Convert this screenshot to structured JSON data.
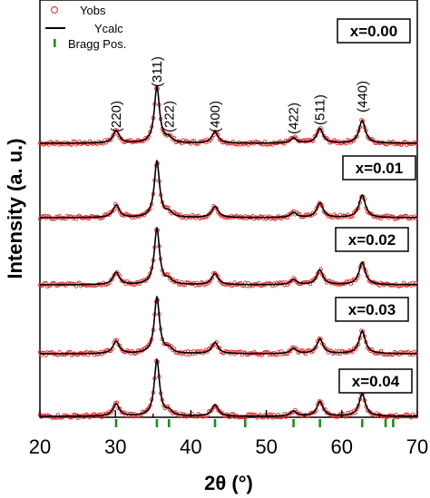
{
  "chart_data": {
    "type": "line",
    "xlabel": "2θ (°)",
    "ylabel": "Intensity (a. u.)",
    "xlim": [
      20,
      70
    ],
    "x_ticks": [
      "20",
      "30",
      "40",
      "50",
      "60",
      "70"
    ],
    "legend": {
      "placement": "top-left",
      "entries": [
        {
          "label": "Yobs",
          "marker": "open-circle",
          "color": "#e03030"
        },
        {
          "label": "Ycalc",
          "marker": "line",
          "color": "#000000"
        },
        {
          "label": "Bragg Pos.",
          "marker": "vertical-bar",
          "color": "#1e8c1e"
        }
      ]
    },
    "peak_labels": [
      {
        "x": 30.1,
        "label": "(220)"
      },
      {
        "x": 35.5,
        "label": "(311)"
      },
      {
        "x": 37.1,
        "label": "(222)"
      },
      {
        "x": 43.2,
        "label": "(400)"
      },
      {
        "x": 53.6,
        "label": "(422)"
      },
      {
        "x": 57.1,
        "label": "(511)"
      },
      {
        "x": 62.7,
        "label": "(440)"
      }
    ],
    "bragg_positions": [
      30.1,
      35.5,
      37.1,
      43.2,
      47.2,
      53.6,
      57.1,
      62.7,
      65.8,
      66.8
    ],
    "peaks": [
      {
        "x": 30.1,
        "height": 0.22
      },
      {
        "x": 35.5,
        "height": 1.0
      },
      {
        "x": 37.1,
        "height": 0.08
      },
      {
        "x": 43.2,
        "height": 0.2
      },
      {
        "x": 53.6,
        "height": 0.09
      },
      {
        "x": 57.1,
        "height": 0.26
      },
      {
        "x": 62.7,
        "height": 0.4
      }
    ],
    "series": [
      {
        "label": "x=0.00"
      },
      {
        "label": "x=0.01"
      },
      {
        "label": "x=0.02"
      },
      {
        "label": "x=0.03"
      },
      {
        "label": "x=0.04"
      }
    ],
    "colors": {
      "observed": "#e03030",
      "calculated": "#000000",
      "bragg": "#1e8c1e"
    },
    "grid": false
  }
}
